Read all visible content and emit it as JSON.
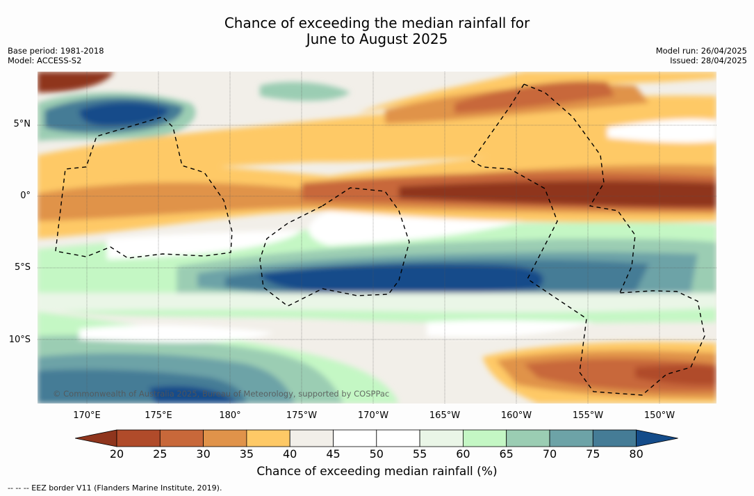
{
  "title_line1": "Chance of exceeding the median rainfall for",
  "title_line2": "June to August 2025",
  "meta_left": {
    "base_period": "Base period: 1981-2018",
    "model": "Model: ACCESS-S2"
  },
  "meta_right": {
    "model_run": "Model run: 26/04/2025",
    "issued": "Issued: 28/04/2025"
  },
  "map": {
    "lat_labels": [
      "5°N",
      "0°",
      "5°S",
      "10°S"
    ],
    "lon_labels": [
      "170°E",
      "175°E",
      "180°",
      "175°W",
      "170°W",
      "165°W",
      "160°W",
      "155°W",
      "150°W"
    ],
    "copyright": "© Commonwealth of Australia 2025, Bureau of Meteorology, supported by COSPPac"
  },
  "colorbar": {
    "ticks": [
      "20",
      "25",
      "30",
      "35",
      "40",
      "45",
      "50",
      "55",
      "60",
      "65",
      "70",
      "75",
      "80"
    ],
    "colors": [
      "#8f351d",
      "#b04b2a",
      "#c8683a",
      "#e0934a",
      "#fec966",
      "#f2efe9",
      "#ffffff",
      "#ffffff",
      "#eaf6e7",
      "#c4f7c4",
      "#9bcdb3",
      "#6da3a7",
      "#457c96",
      "#144c8a"
    ],
    "label": "Chance of exceeding median rainfall (%)"
  },
  "footnote": "--  --  -- EEZ border V11 (Flanders Marine Institute, 2019)."
}
